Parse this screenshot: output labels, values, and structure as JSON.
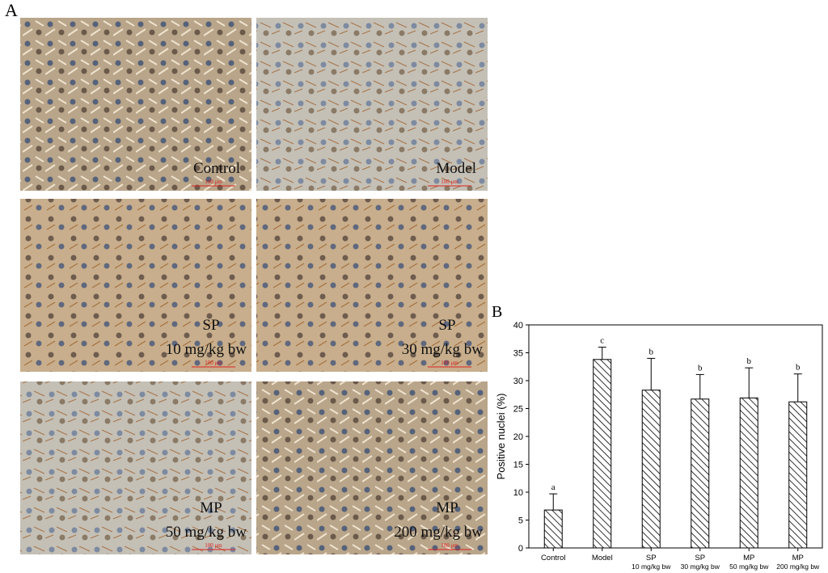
{
  "figure_labels": [
    "A",
    "B"
  ],
  "panels": [
    {
      "lines": [
        "Control"
      ],
      "scale": "100 μm"
    },
    {
      "lines": [
        "Model"
      ],
      "scale": "100 μm"
    },
    {
      "lines": [
        "SP",
        "10 mg/kg bw"
      ],
      "scale": "100 μm"
    },
    {
      "lines": [
        "SP",
        "30 mg/kg bw"
      ],
      "scale": "100 μm"
    },
    {
      "lines": [
        "MP",
        "50 mg/kg bw"
      ],
      "scale": "100 μm"
    },
    {
      "lines": [
        "MP",
        "200 mg/kg bw"
      ],
      "scale": "100 μm"
    }
  ],
  "chart_data": {
    "type": "bar",
    "ylabel": "Positive nuclei (%)",
    "categories": [
      [
        "Control"
      ],
      [
        "Model"
      ],
      [
        "SP",
        "10 mg/kg bw"
      ],
      [
        "SP",
        "30 mg/kg bw"
      ],
      [
        "MP",
        "50 mg/kg bw"
      ],
      [
        "MP",
        "200 mg/kg bw"
      ]
    ],
    "values": [
      6.8,
      33.8,
      28.3,
      26.7,
      26.9,
      26.2
    ],
    "errors": [
      2.9,
      2.2,
      5.7,
      4.4,
      5.4,
      5.0
    ],
    "annotations": [
      "a",
      "c",
      "b",
      "b",
      "b",
      "b"
    ],
    "ylim": [
      0,
      40
    ],
    "yticks": [
      0,
      5,
      10,
      15,
      20,
      25,
      30,
      35,
      40
    ],
    "color": "#000000",
    "hatch": true
  }
}
